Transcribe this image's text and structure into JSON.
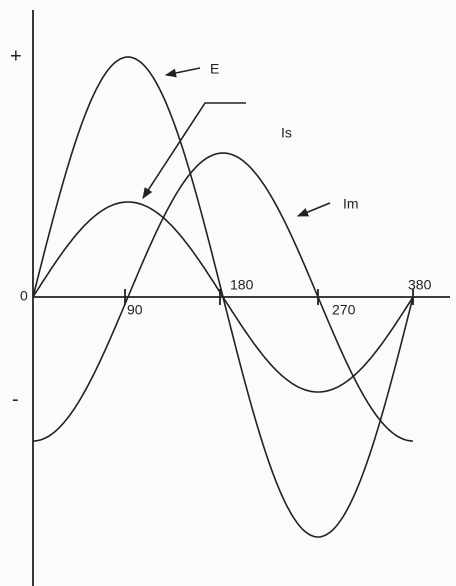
{
  "axis": {
    "plus": "+",
    "minus": "-",
    "origin": "0",
    "ticks": [
      "90",
      "180",
      "270",
      "380"
    ]
  },
  "curves": {
    "e": "E",
    "is": "Is",
    "im": "Im"
  }
}
